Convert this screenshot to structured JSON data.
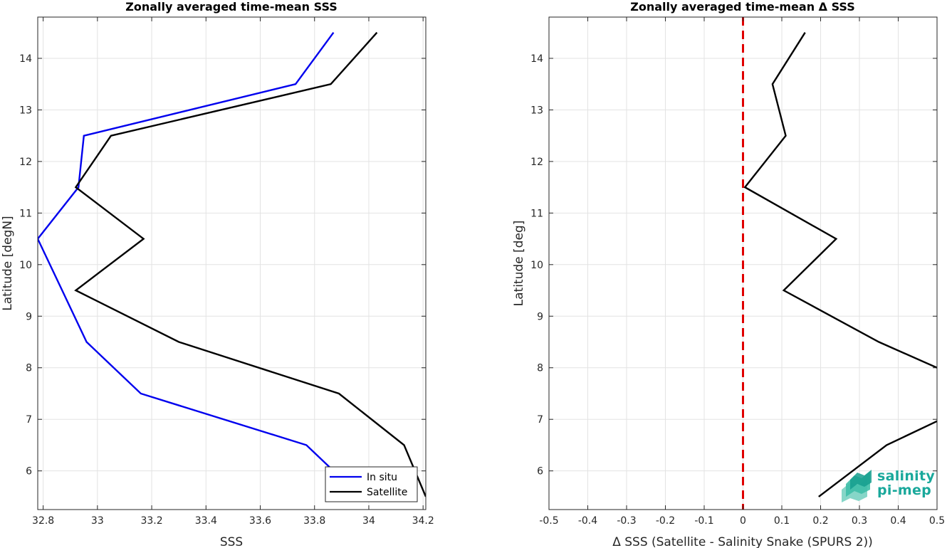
{
  "chart_data": [
    {
      "type": "line",
      "title": "Zonally averaged time-mean SSS",
      "xlabel": "SSS",
      "ylabel": "Latitude [degN]",
      "xlim": [
        32.78,
        34.21
      ],
      "ylim": [
        5.25,
        14.8
      ],
      "xticks": [
        32.8,
        33,
        33.2,
        33.4,
        33.6,
        33.8,
        34,
        34.2
      ],
      "xtick_labels": [
        "32.8",
        "33",
        "33.2",
        "33.4",
        "33.6",
        "33.8",
        "34",
        "34.2"
      ],
      "yticks": [
        6,
        7,
        8,
        9,
        10,
        11,
        12,
        13,
        14
      ],
      "ytick_labels": [
        "6",
        "7",
        "8",
        "9",
        "10",
        "11",
        "12",
        "13",
        "14"
      ],
      "grid": true,
      "legend_position": "bottom-right",
      "series": [
        {
          "name": "In situ",
          "color": "#0000ee",
          "y": [
            14.5,
            13.5,
            12.5,
            11.5,
            10.5,
            9.5,
            8.5,
            7.5,
            6.5,
            5.5
          ],
          "x": [
            33.87,
            33.73,
            32.95,
            32.93,
            32.78,
            32.87,
            32.96,
            33.16,
            33.77,
            33.97
          ]
        },
        {
          "name": "Satellite",
          "color": "#000000",
          "y": [
            14.5,
            13.5,
            12.5,
            11.5,
            10.5,
            9.5,
            8.5,
            7.5,
            6.5,
            5.5
          ],
          "x": [
            34.03,
            33.86,
            33.05,
            32.92,
            33.17,
            32.92,
            33.3,
            33.89,
            34.13,
            34.21
          ]
        }
      ]
    },
    {
      "type": "line",
      "title": "Zonally averaged time-mean Δ SSS",
      "xlabel": "Δ SSS (Satellite - Salinity Snake (SPURS 2))",
      "ylabel": "Latitude [deg]",
      "xlim": [
        -0.5,
        0.5
      ],
      "ylim": [
        5.25,
        14.8
      ],
      "xticks": [
        -0.5,
        -0.4,
        -0.3,
        -0.2,
        -0.1,
        0,
        0.1,
        0.2,
        0.3,
        0.4,
        0.5
      ],
      "xtick_labels": [
        "-0.5",
        "-0.4",
        "-0.3",
        "-0.2",
        "-0.1",
        "0",
        "0.1",
        "0.2",
        "0.3",
        "0.4",
        "0.5"
      ],
      "yticks": [
        6,
        7,
        8,
        9,
        10,
        11,
        12,
        13,
        14
      ],
      "ytick_labels": [
        "6",
        "7",
        "8",
        "9",
        "10",
        "11",
        "12",
        "13",
        "14"
      ],
      "grid": true,
      "reference_line": {
        "x": 0,
        "style": "dashed",
        "color": "#e00000"
      },
      "series": [
        {
          "color": "#000000",
          "y": [
            14.5,
            13.5,
            12.5,
            11.5,
            10.5,
            9.5,
            8.5,
            7.5,
            6.5,
            5.5
          ],
          "x": [
            0.16,
            0.076,
            0.11,
            0.005,
            0.24,
            0.105,
            0.35,
            0.65,
            0.37,
            0.195
          ]
        }
      ]
    }
  ],
  "logo": {
    "line1": "salinity",
    "line2": "pi-mep",
    "color": "#19a89b"
  }
}
